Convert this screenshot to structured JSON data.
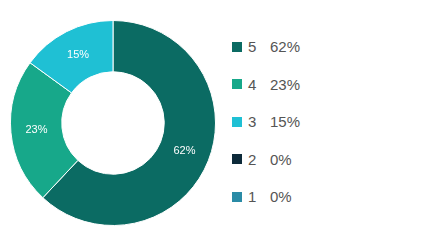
{
  "chart_data": {
    "type": "doughnut",
    "categories": [
      "5",
      "4",
      "3",
      "2",
      "1"
    ],
    "values": [
      62,
      23,
      15,
      0,
      0
    ],
    "value_labels": [
      "62%",
      "23%",
      "15%",
      "0%",
      "0%"
    ],
    "colors": [
      "#0b6b63",
      "#17a88a",
      "#1fc0d4",
      "#0d2a3a",
      "#2a8ba6"
    ],
    "legend": "right",
    "data_labels": true
  }
}
